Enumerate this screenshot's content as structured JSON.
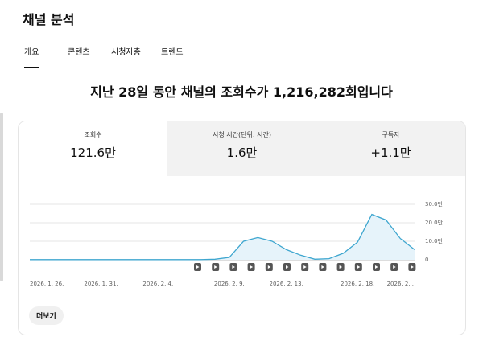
{
  "header": {
    "title": "채널 분석"
  },
  "tabs": [
    {
      "label": "개요",
      "selected": true
    },
    {
      "label": "콘텐츠",
      "selected": false
    },
    {
      "label": "시청자층",
      "selected": false
    },
    {
      "label": "트렌드",
      "selected": false
    }
  ],
  "headline": "지난 28일 동안 채널의 조회수가 1,216,282회입니다",
  "metrics": [
    {
      "label": "조회수",
      "value": "121.6만",
      "selected": true
    },
    {
      "label": "시청 시간(단위: 시간)",
      "value": "1.6만",
      "selected": false
    },
    {
      "label": "구독자",
      "value": "+1.1만",
      "selected": false
    }
  ],
  "chart_data": {
    "type": "area",
    "categories": [
      "2026. 1. 26.",
      null,
      null,
      null,
      null,
      "2026. 1. 31.",
      null,
      null,
      null,
      "2026. 2. 4.",
      null,
      null,
      null,
      null,
      "2026. 2. 9.",
      null,
      null,
      null,
      "2026. 2. 13.",
      null,
      null,
      null,
      null,
      "2026. 2. 18.",
      null,
      null,
      "2026. 2...",
      null
    ],
    "values": [
      0.1,
      0.1,
      0.1,
      0.1,
      0.1,
      0.1,
      0.1,
      0.1,
      0.1,
      0.1,
      0.1,
      0.1,
      0.1,
      0.3,
      1.3,
      10,
      12,
      10,
      5.5,
      2.5,
      0.3,
      0.6,
      3.5,
      9.5,
      24.5,
      21.5,
      11.5,
      5.5
    ],
    "color": "#3ea6cf",
    "fill": "#e6f3fa",
    "ylim": [
      0,
      30
    ],
    "yticks": [
      0,
      {
        "value": 10,
        "label": "10.0만"
      },
      {
        "value": 20,
        "label": "20.0만"
      },
      {
        "value": 30,
        "label": "30.0만"
      }
    ],
    "grid": true
  },
  "more_button": "더보기"
}
